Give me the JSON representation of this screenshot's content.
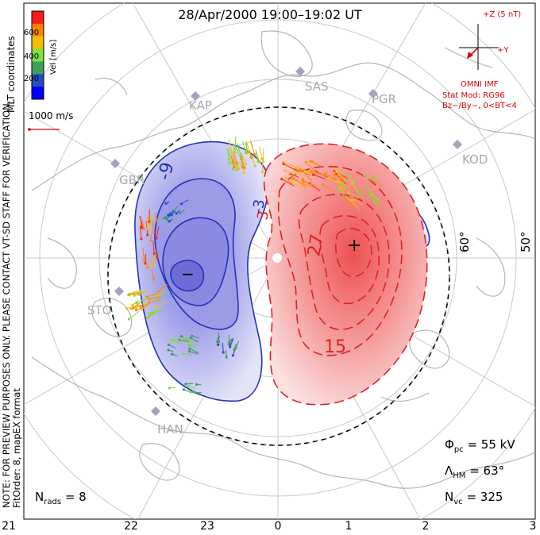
{
  "title": "28/Apr/2000 19:00–19:02 UT",
  "coord_system": "MLT coordinates",
  "preview_note": "NOTE: FOR PREVIEW PURPOSES ONLY. PLEASE CONTACT VT-SD STAFF FOR VERIFICATION.",
  "fit_info": "FitOrder: 8, mapEX format",
  "colorbar": {
    "label": "Vel [m/s]",
    "ticks": [
      "600",
      "400",
      "200"
    ],
    "colors": [
      "#ff1a1a",
      "#ff8000",
      "#f0c000",
      "#80e040",
      "#40a060",
      "#2050c0",
      "#0000ff"
    ]
  },
  "velocity_scale": "1000 m/s",
  "imf": {
    "z_label": "+Z (5 nT)",
    "y_label": "+Y",
    "source": "OMNI IMF",
    "stat_mod": "Stat Mod: RG96",
    "condition": "Bz−/By−, 0<BT<4"
  },
  "stations": [
    "KAP",
    "SAS",
    "PGR",
    "GBR",
    "KOD",
    "STO",
    "HAN"
  ],
  "lat_labels": [
    "60°",
    "50°"
  ],
  "mlt_labels": [
    "21",
    "22",
    "23",
    "0",
    "1",
    "2",
    "3"
  ],
  "contour_labels": [
    "-9",
    "-3",
    "3",
    "27",
    "15"
  ],
  "extrema": {
    "min_symbol": "−",
    "max_symbol": "+"
  },
  "stats": {
    "phi_symbol": "Φ",
    "phi_sub": "pc",
    "phi_value": "= 55 kV",
    "lambda_symbol": "Λ",
    "lambda_sub": "HM",
    "lambda_value": "= 63°",
    "nvc_symbol": "N",
    "nvc_sub": "vc",
    "nvc_value": "= 325",
    "nrads_symbol": "N",
    "nrads_sub": "rads",
    "nrads_value": "= 8"
  },
  "colors": {
    "dusk_cell": "#2233bb",
    "dawn_cell": "#dd2222",
    "grid": "#c8c8c8",
    "coast": "#b4b4b4",
    "annotation_red": "#dd0000"
  }
}
